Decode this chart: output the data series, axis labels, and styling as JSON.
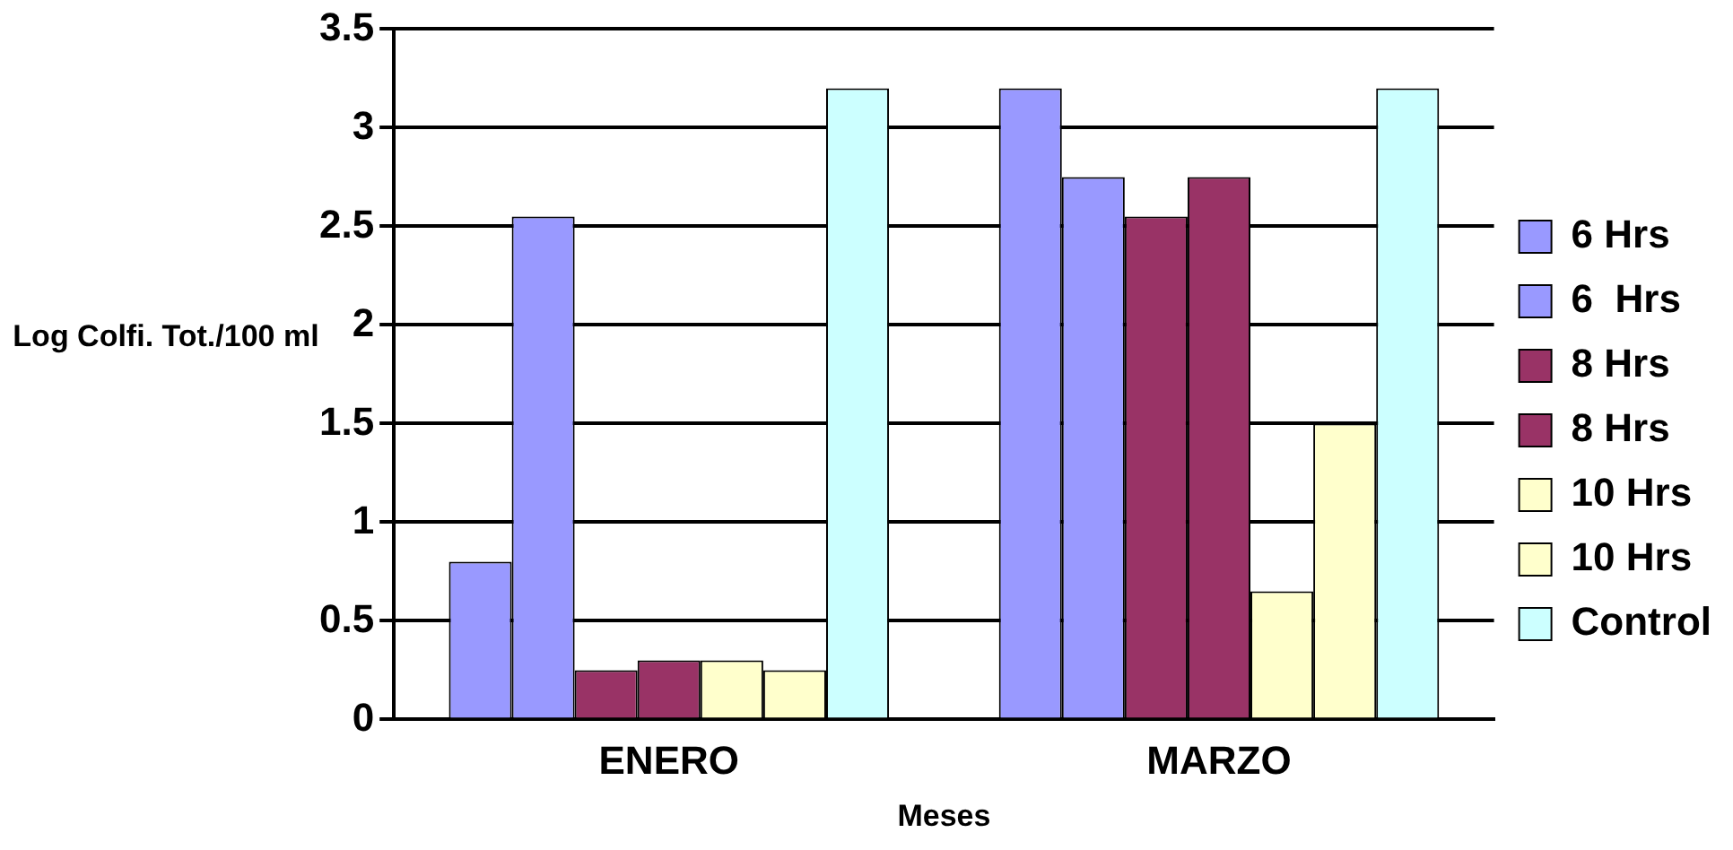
{
  "chart_data": {
    "type": "bar",
    "xlabel": "Meses",
    "ylabel": "Log Colfi. Tot./100 ml",
    "categories": [
      "ENERO",
      "MARZO"
    ],
    "series": [
      {
        "name": "6 Hrs",
        "color": "#9999ff",
        "values": [
          0.8,
          3.2
        ]
      },
      {
        "name": "6  Hrs",
        "color": "#9999ff",
        "values": [
          2.55,
          2.75
        ]
      },
      {
        "name": "8 Hrs",
        "color": "#993366",
        "values": [
          0.25,
          2.55
        ]
      },
      {
        "name": "8 Hrs",
        "color": "#993366",
        "values": [
          0.3,
          2.75
        ]
      },
      {
        "name": "10 Hrs",
        "color": "#ffffcc",
        "values": [
          0.3,
          0.65
        ]
      },
      {
        "name": "10 Hrs",
        "color": "#ffffcc",
        "values": [
          0.25,
          1.5
        ]
      },
      {
        "name": "Control",
        "color": "#ccffff",
        "values": [
          3.2,
          3.2
        ]
      }
    ],
    "ylim": [
      0,
      3.5
    ],
    "yticks": [
      0,
      0.5,
      1,
      1.5,
      2,
      2.5,
      3,
      3.5
    ],
    "grid": "y",
    "legend": "right"
  }
}
